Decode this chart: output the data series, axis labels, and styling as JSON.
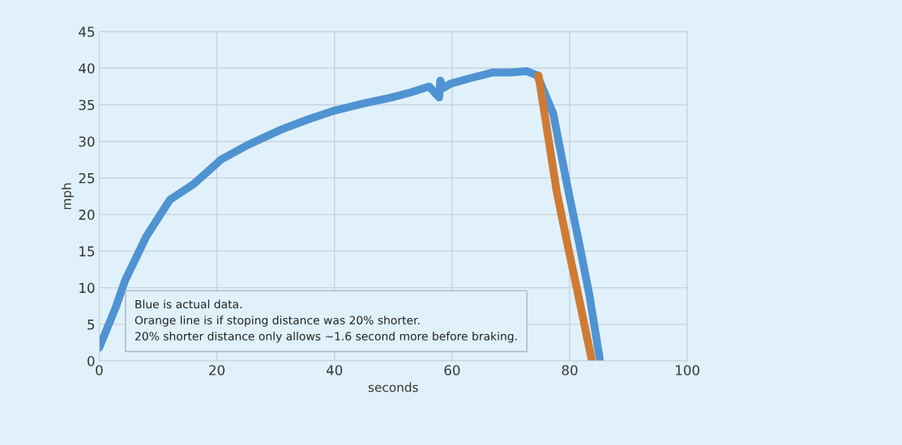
{
  "chart_data": {
    "type": "line",
    "xlabel": "seconds",
    "ylabel": "mph",
    "xlim": [
      0,
      100
    ],
    "xticks": [
      0,
      20,
      40,
      60,
      80,
      100
    ],
    "ylim": [
      0,
      45
    ],
    "yticks": [
      0,
      5,
      10,
      15,
      20,
      25,
      30,
      35,
      40,
      45
    ],
    "grid": true,
    "legend": false,
    "series": [
      {
        "color": "#4f93d2",
        "x": [
          0,
          2.8,
          4.4,
          8,
          12,
          16.1,
          20.7,
          25.5,
          30.9,
          35.5,
          40,
          45,
          49.7,
          53,
          56.1,
          57.8,
          58,
          58.5,
          59.8,
          63,
          66.8,
          70,
          72.7,
          74.5,
          77.2,
          79.6,
          81.5,
          83.3,
          85.1
        ],
        "values": [
          1.8,
          7.3,
          11,
          17,
          22,
          24.2,
          27.5,
          29.6,
          31.6,
          33,
          34.2,
          35.2,
          36,
          36.7,
          37.5,
          36,
          38.3,
          37.3,
          37.9,
          38.6,
          39.4,
          39.4,
          39.6,
          39,
          33.8,
          23.9,
          16.5,
          9.2,
          0.3
        ]
      },
      {
        "color": "#d07a33",
        "x": [
          74.7,
          77.8,
          79.6,
          81.4,
          83.7
        ],
        "values": [
          39,
          23.1,
          16,
          9.2,
          0.3
        ]
      }
    ],
    "annotations": [
      "Blue is actual data.",
      "Orange line is if stoping distance was 20% shorter.",
      "20% shorter distance only allows ~1.6 second more before braking."
    ]
  }
}
